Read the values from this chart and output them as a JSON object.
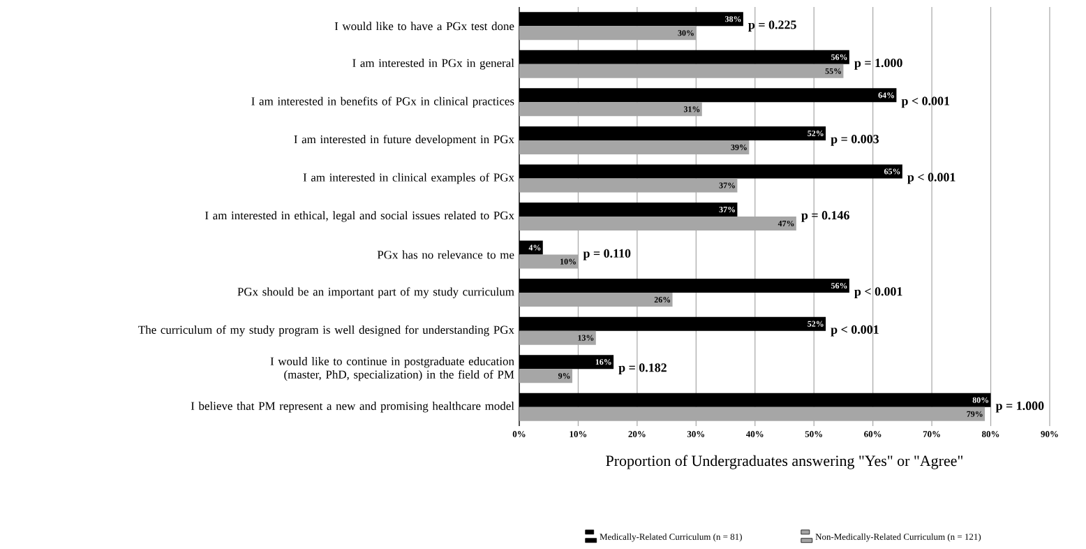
{
  "chart_data": {
    "type": "bar",
    "orientation": "horizontal",
    "categories": [
      "I would like to have a PGx test done",
      "I am interested in PGx in general",
      "I am interested in benefits of PGx in clinical practices",
      "I am interested in future development in PGx",
      "I am interested in clinical examples of PGx",
      "I am interested in ethical, legal and social issues related to PGx",
      "PGx has no relevance to me",
      "PGx should be an important part of my study curriculum",
      "The curriculum of my study program is well designed for understanding PGx",
      "I would like to continue in postgraduate education (master, PhD, specialization) in the field of PM",
      "I believe that PM represent a new and promising healthcare model"
    ],
    "series": [
      {
        "name": "Medically-Related Curriculum (n = 81)",
        "color": "#000000",
        "values": [
          38,
          56,
          64,
          52,
          65,
          37,
          4,
          56,
          52,
          16,
          80
        ],
        "value_labels": [
          "38%",
          "56%",
          "64%",
          "52%",
          "65%",
          "37%",
          "4%",
          "56%",
          "52%",
          "16%",
          "80%"
        ]
      },
      {
        "name": "Non-Medically-Related Curriculum (n = 121)",
        "color": "#a6a6a6",
        "values": [
          30,
          55,
          31,
          39,
          37,
          47,
          10,
          26,
          13,
          9,
          79
        ],
        "value_labels": [
          "30%",
          "55%",
          "31%",
          "39%",
          "37%",
          "47%",
          "10%",
          "26%",
          "13%",
          "9%",
          "79%"
        ]
      }
    ],
    "annotations": [
      "p = 0.225",
      "p = 1.000",
      "p < 0.001",
      "p = 0.003",
      "p < 0.001",
      "p = 0.146",
      "p = 0.110",
      "p < 0.001",
      "p < 0.001",
      "p = 0.182",
      "p = 1.000"
    ],
    "xlabel": "Proportion of Undergraduates answering \"Yes\" or \"Agree\"",
    "xlim": [
      0,
      90
    ],
    "xticks": [
      {
        "value": 0,
        "label": "0%"
      },
      {
        "value": 10,
        "label": "10%"
      },
      {
        "value": 20,
        "label": "20%"
      },
      {
        "value": 30,
        "label": "30%"
      },
      {
        "value": 40,
        "label": "40%"
      },
      {
        "value": 50,
        "label": "50%"
      },
      {
        "value": 60,
        "label": "60%"
      },
      {
        "value": 70,
        "label": "70%"
      },
      {
        "value": 80,
        "label": "80%"
      },
      {
        "value": 90,
        "label": "90%"
      }
    ],
    "grid": "x",
    "legend": "bottom"
  }
}
